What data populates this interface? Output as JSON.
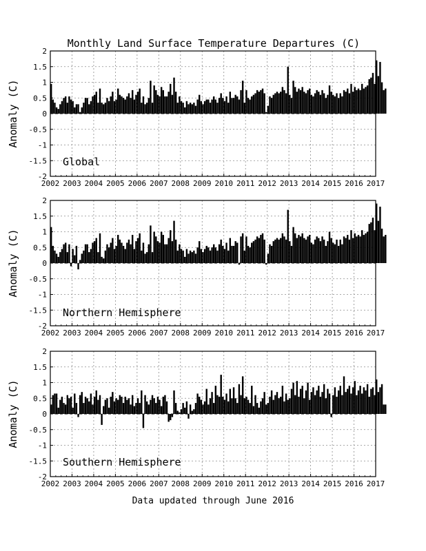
{
  "title": "Monthly Land Surface Temperature Departures (C)",
  "footer": "Data updated through June 2016",
  "ylabel": "Anomaly (C)",
  "bar_color": "#000000",
  "grid_color": "#8a8a8a",
  "chart_data": [
    {
      "type": "bar",
      "panel_label": "Global",
      "xlim": [
        2002,
        2017
      ],
      "ylim": [
        -2,
        2
      ],
      "x_ticks": [
        "2002",
        "2003",
        "2004",
        "2005",
        "2006",
        "2007",
        "2008",
        "2009",
        "2010",
        "2011",
        "2012",
        "2013",
        "2014",
        "2015",
        "2016",
        "2017"
      ],
      "y_ticks": [
        "2",
        "1.5",
        "1",
        "0.5",
        "0",
        "-0.5",
        "-1",
        "-1.5",
        "-2"
      ],
      "grid": true,
      "start": "2002-01",
      "end": "2016-06",
      "values": [
        0.95,
        0.45,
        0.35,
        0.2,
        0.15,
        0.3,
        0.4,
        0.5,
        0.55,
        0.35,
        0.55,
        0.45,
        0.4,
        0.2,
        0.3,
        0.3,
        0.05,
        0.2,
        0.35,
        0.5,
        0.5,
        0.3,
        0.4,
        0.55,
        0.6,
        0.7,
        0.35,
        0.8,
        0.35,
        0.3,
        0.35,
        0.5,
        0.4,
        0.55,
        0.7,
        0.4,
        0.45,
        0.8,
        0.6,
        0.55,
        0.5,
        0.45,
        0.55,
        0.65,
        0.5,
        0.75,
        0.45,
        0.6,
        0.7,
        0.8,
        0.35,
        0.55,
        0.3,
        0.35,
        0.5,
        1.05,
        0.35,
        0.9,
        0.75,
        0.6,
        0.55,
        0.85,
        0.75,
        0.55,
        0.55,
        0.7,
        0.95,
        0.6,
        1.15,
        0.7,
        0.35,
        0.55,
        0.4,
        0.35,
        0.2,
        0.4,
        0.3,
        0.35,
        0.3,
        0.35,
        0.25,
        0.45,
        0.6,
        0.4,
        0.3,
        0.4,
        0.45,
        0.45,
        0.35,
        0.45,
        0.55,
        0.45,
        0.35,
        0.5,
        0.65,
        0.5,
        0.4,
        0.55,
        0.35,
        0.7,
        0.5,
        0.5,
        0.6,
        0.55,
        0.45,
        0.75,
        1.05,
        0.35,
        0.75,
        0.5,
        0.45,
        0.55,
        0.6,
        0.65,
        0.75,
        0.7,
        0.75,
        0.8,
        0.65,
        0.05,
        0.25,
        0.55,
        0.5,
        0.6,
        0.65,
        0.7,
        0.65,
        0.7,
        0.85,
        0.75,
        0.65,
        1.5,
        0.6,
        0.5,
        1.05,
        0.85,
        0.7,
        0.8,
        0.75,
        0.85,
        0.7,
        0.65,
        0.75,
        0.8,
        0.6,
        0.55,
        0.65,
        0.75,
        0.7,
        0.6,
        0.75,
        0.65,
        0.5,
        0.6,
        0.9,
        0.7,
        0.6,
        0.55,
        0.65,
        0.5,
        0.65,
        0.55,
        0.75,
        0.7,
        0.8,
        0.65,
        0.95,
        0.7,
        0.85,
        0.75,
        0.8,
        0.75,
        0.95,
        0.8,
        0.85,
        0.9,
        1.1,
        1.15,
        1.3,
        0.95,
        1.7,
        1.2,
        1.65,
        1.0,
        0.75,
        0.8
      ]
    },
    {
      "type": "bar",
      "panel_label": "Northern Hemisphere",
      "xlim": [
        2002,
        2017
      ],
      "ylim": [
        -2,
        2
      ],
      "x_ticks": [
        "2002",
        "2003",
        "2004",
        "2005",
        "2006",
        "2007",
        "2008",
        "2009",
        "2010",
        "2011",
        "2012",
        "2013",
        "2014",
        "2015",
        "2016",
        "2017"
      ],
      "y_ticks": [
        "2",
        "1.5",
        "1",
        "0.5",
        "0",
        "-0.5",
        "-1",
        "-1.5",
        "-2"
      ],
      "grid": true,
      "start": "2002-01",
      "end": "2016-06",
      "values": [
        1.15,
        0.55,
        0.4,
        0.3,
        0.2,
        0.35,
        0.45,
        0.6,
        0.65,
        0.35,
        0.6,
        -0.1,
        0.45,
        0.25,
        0.55,
        -0.2,
        0.1,
        0.3,
        0.4,
        0.6,
        0.6,
        0.35,
        0.45,
        0.65,
        0.7,
        0.8,
        0.35,
        0.95,
        0.2,
        0.15,
        0.4,
        0.6,
        0.5,
        0.65,
        0.8,
        0.45,
        0.55,
        0.9,
        0.75,
        0.65,
        0.55,
        0.45,
        0.65,
        0.75,
        0.6,
        0.9,
        0.45,
        0.7,
        0.8,
        0.95,
        0.4,
        0.65,
        0.3,
        0.35,
        0.6,
        1.2,
        0.35,
        1.0,
        0.85,
        0.7,
        0.65,
        1.0,
        0.9,
        0.6,
        0.6,
        0.8,
        1.05,
        0.7,
        1.35,
        0.75,
        0.4,
        0.6,
        0.45,
        0.4,
        0.2,
        0.45,
        0.3,
        0.4,
        0.35,
        0.4,
        0.3,
        0.5,
        0.7,
        0.45,
        0.35,
        0.45,
        0.55,
        0.5,
        0.4,
        0.5,
        0.6,
        0.5,
        0.4,
        0.6,
        0.75,
        0.55,
        0.45,
        0.65,
        0.4,
        0.8,
        0.55,
        0.55,
        0.7,
        0.65,
        -0.05,
        0.85,
        0.95,
        0.4,
        0.85,
        0.55,
        0.5,
        0.65,
        0.7,
        0.75,
        0.85,
        0.8,
        0.9,
        0.95,
        0.75,
        -0.05,
        0.3,
        0.6,
        0.55,
        0.7,
        0.75,
        0.8,
        0.75,
        0.8,
        0.95,
        0.85,
        0.75,
        1.7,
        0.7,
        0.55,
        1.15,
        0.95,
        0.8,
        0.9,
        0.85,
        0.95,
        0.8,
        0.75,
        0.85,
        0.9,
        0.65,
        0.6,
        0.75,
        0.85,
        0.8,
        0.7,
        0.85,
        0.75,
        0.55,
        0.7,
        1.0,
        0.8,
        0.65,
        0.6,
        0.75,
        0.55,
        0.75,
        0.6,
        0.85,
        0.8,
        0.9,
        0.75,
        1.05,
        0.8,
        0.95,
        0.85,
        0.9,
        0.85,
        1.05,
        0.9,
        0.95,
        1.0,
        1.25,
        1.3,
        1.45,
        1.05,
        1.9,
        1.35,
        1.8,
        1.1,
        0.85,
        0.9
      ]
    },
    {
      "type": "bar",
      "panel_label": "Southern Hemisphere",
      "xlim": [
        2002,
        2017
      ],
      "ylim": [
        -2,
        2
      ],
      "x_ticks": [
        "2002",
        "2003",
        "2004",
        "2005",
        "2006",
        "2007",
        "2008",
        "2009",
        "2010",
        "2011",
        "2012",
        "2013",
        "2014",
        "2015",
        "2016",
        "2017"
      ],
      "y_ticks": [
        "2",
        "1.5",
        "1",
        "0.5",
        "0",
        "-0.5",
        "-1",
        "-1.5",
        "-2"
      ],
      "grid": true,
      "start": "2002-01",
      "end": "2016-06",
      "values": [
        0.3,
        0.6,
        0.65,
        0.65,
        0.2,
        0.45,
        0.55,
        0.35,
        0.3,
        0.6,
        0.5,
        0.55,
        0.2,
        0.65,
        0.35,
        -0.1,
        0.6,
        0.7,
        0.35,
        0.55,
        0.5,
        0.4,
        0.65,
        0.3,
        0.55,
        0.75,
        0.45,
        0.6,
        -0.35,
        0.25,
        0.45,
        0.5,
        0.2,
        0.55,
        0.7,
        0.4,
        0.5,
        0.45,
        0.6,
        0.55,
        0.35,
        0.55,
        0.45,
        0.5,
        0.3,
        0.6,
        0.25,
        0.35,
        0.5,
        0.35,
        0.75,
        -0.45,
        0.6,
        0.4,
        0.3,
        0.45,
        0.6,
        0.5,
        0.35,
        0.55,
        0.45,
        0.25,
        0.55,
        0.6,
        0.4,
        -0.25,
        -0.2,
        -0.1,
        0.75,
        0.35,
        0.1,
        0.05,
        0.15,
        0.35,
        0.2,
        0.4,
        -0.15,
        0.3,
        0.1,
        0.15,
        0.35,
        0.65,
        0.55,
        0.45,
        0.3,
        0.4,
        0.8,
        0.3,
        0.5,
        0.7,
        0.35,
        0.9,
        0.6,
        0.55,
        1.25,
        0.55,
        0.45,
        0.65,
        0.4,
        0.8,
        0.5,
        0.85,
        0.5,
        0.35,
        0.95,
        0.6,
        1.2,
        0.5,
        0.55,
        0.45,
        0.35,
        0.9,
        0.25,
        0.6,
        0.35,
        0.2,
        0.4,
        0.5,
        0.7,
        0.3,
        0.35,
        0.55,
        0.75,
        0.45,
        0.6,
        0.7,
        0.5,
        0.55,
        0.9,
        0.4,
        0.65,
        0.45,
        0.5,
        0.8,
        1.0,
        0.6,
        1.05,
        0.55,
        0.8,
        0.9,
        0.5,
        0.75,
        1.0,
        0.45,
        0.7,
        0.85,
        0.6,
        0.75,
        0.9,
        0.55,
        0.7,
        0.95,
        0.5,
        0.8,
        0.65,
        -0.1,
        0.6,
        0.85,
        0.55,
        0.75,
        0.9,
        0.6,
        1.2,
        0.7,
        0.8,
        0.9,
        0.65,
        0.85,
        1.05,
        0.6,
        0.75,
        0.9,
        0.65,
        0.85,
        0.75,
        0.95,
        0.55,
        0.8,
        0.85,
        0.6,
        1.1,
        0.7,
        0.85,
        0.95,
        0.3,
        0.3
      ]
    }
  ]
}
